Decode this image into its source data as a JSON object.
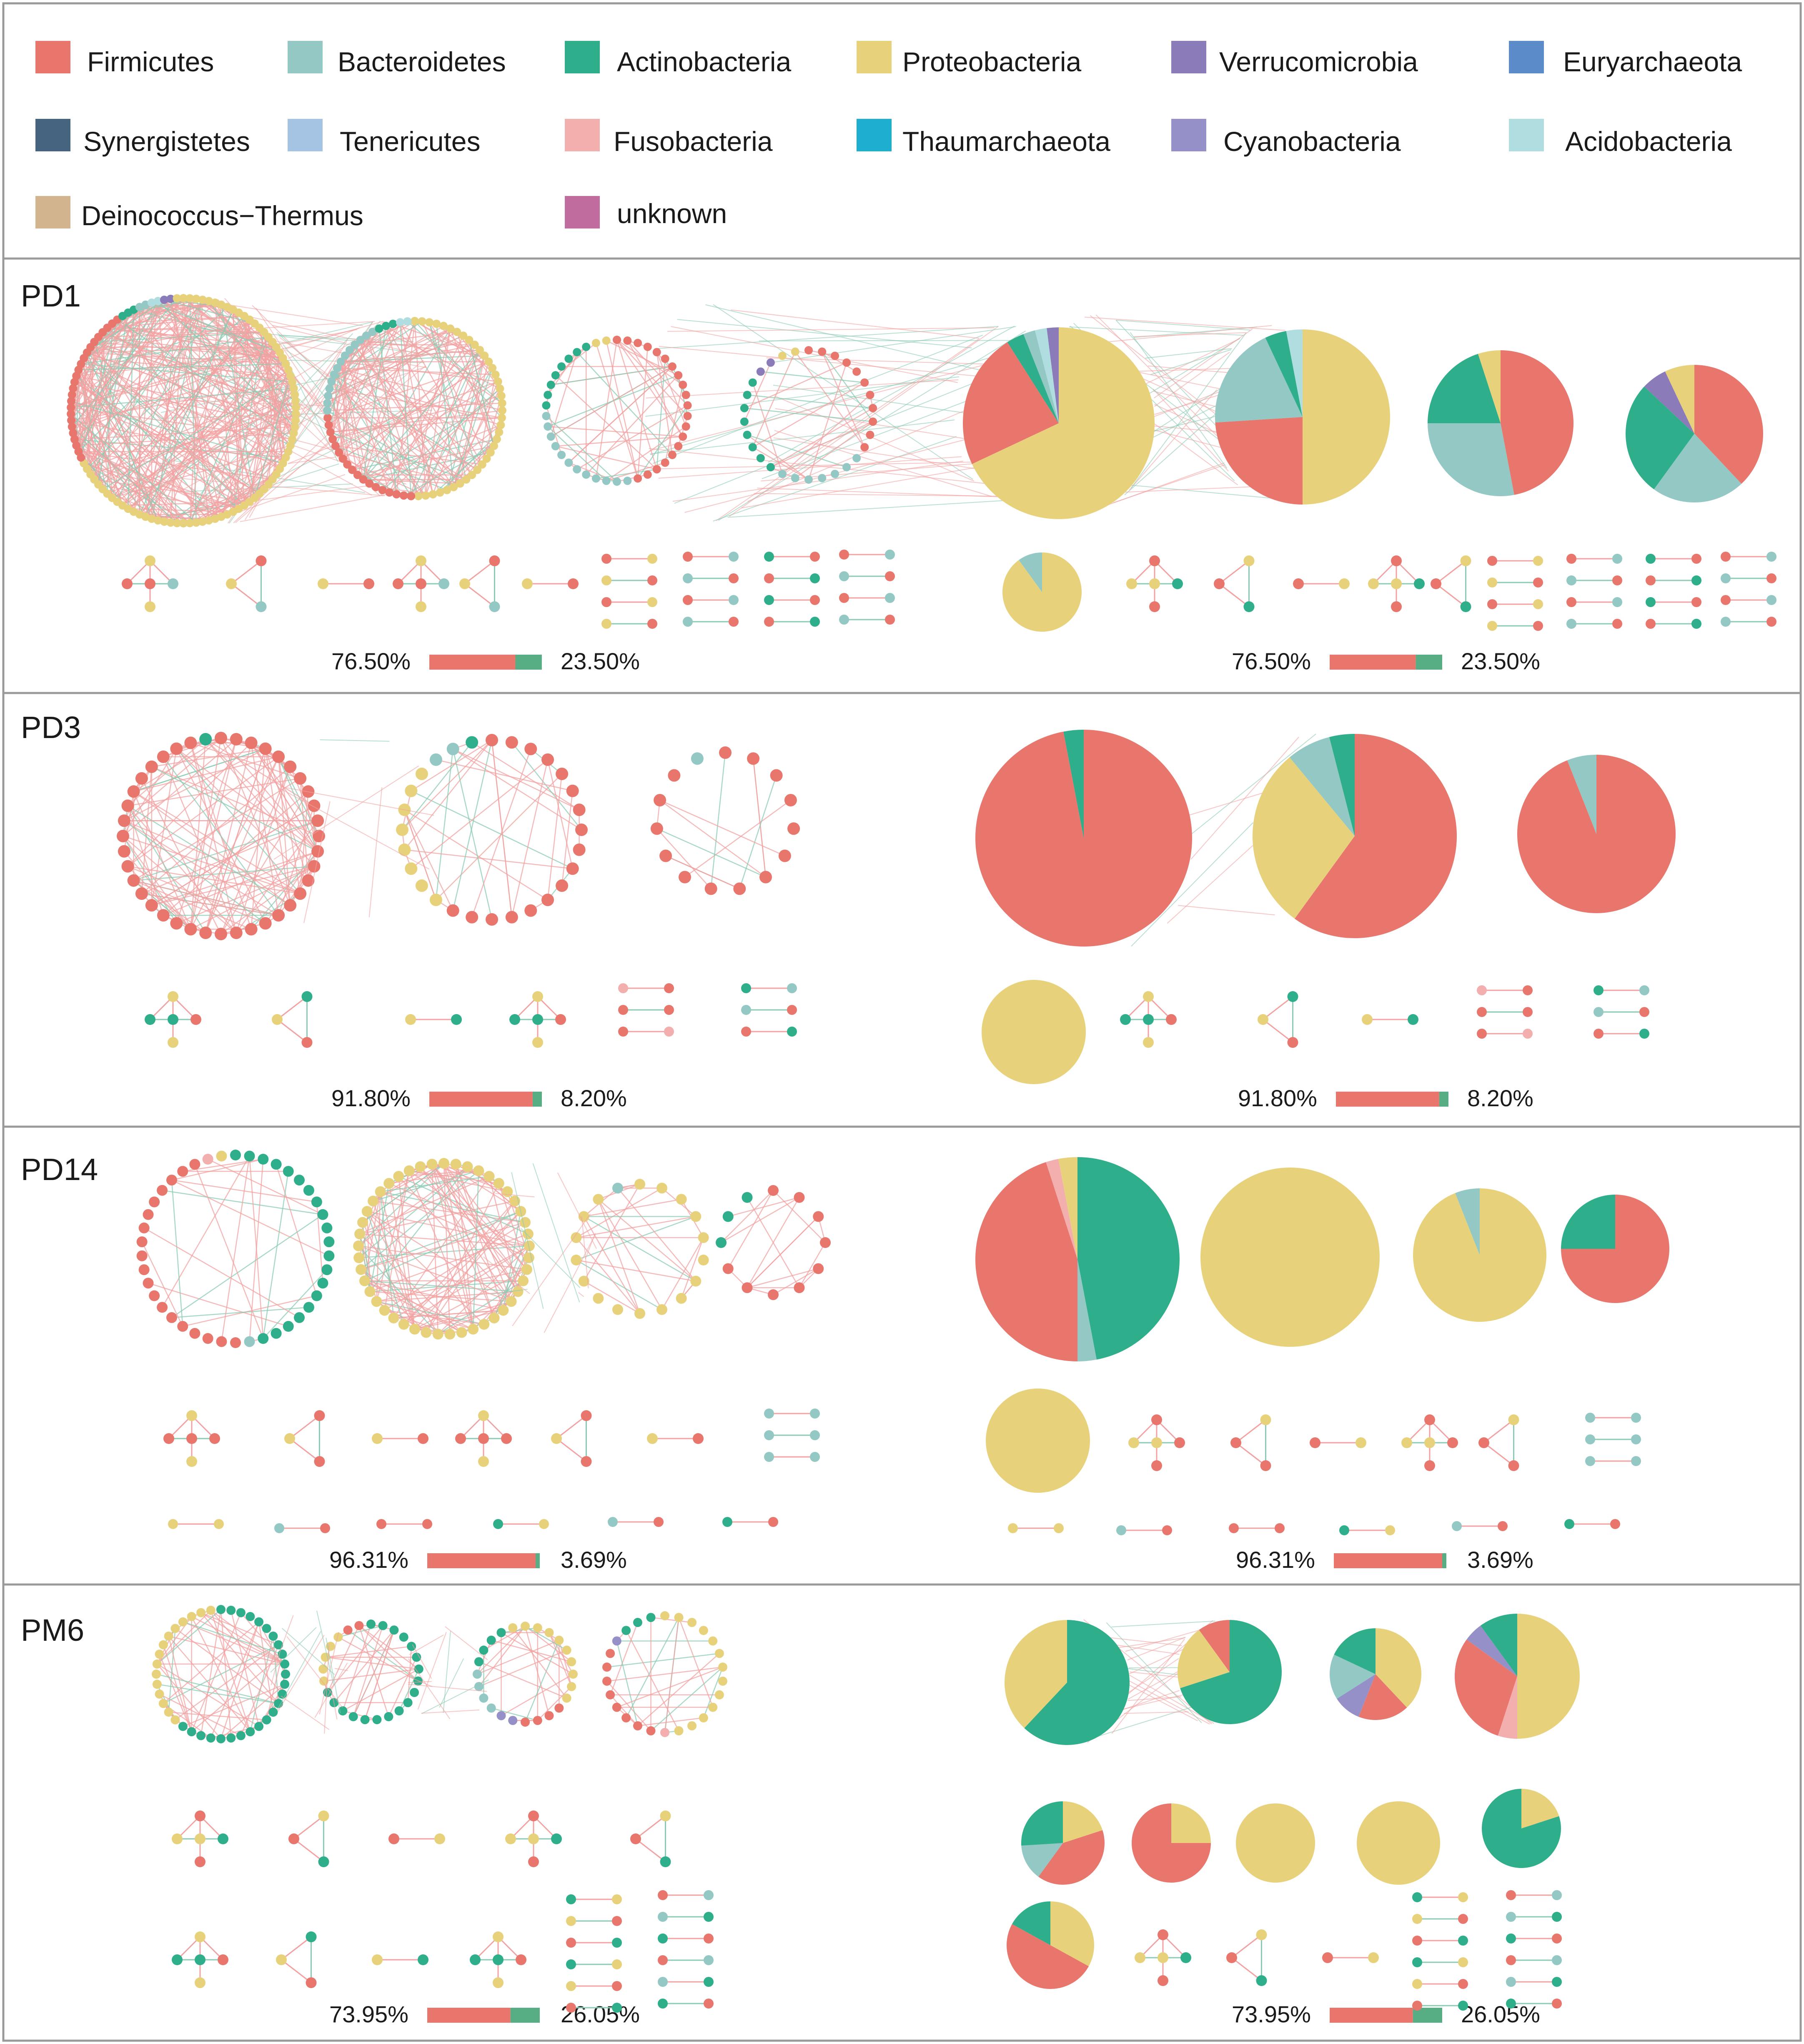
{
  "legend": [
    {
      "name": "Firmicutes",
      "color": "#E8766D"
    },
    {
      "name": "Bacteroidetes",
      "color": "#93C8C4"
    },
    {
      "name": "Actinobacteria",
      "color": "#2EAE8A"
    },
    {
      "name": "Proteobacteria",
      "color": "#E7D27B"
    },
    {
      "name": "Verrucomicrobia",
      "color": "#8B7BB8"
    },
    {
      "name": "Euryarchaeota",
      "color": "#5B8BC8"
    },
    {
      "name": "Synergistetes",
      "color": "#46637F"
    },
    {
      "name": "Tenericutes",
      "color": "#A5C3E2"
    },
    {
      "name": "Fusobacteria",
      "color": "#F3AEAE"
    },
    {
      "name": "Thaumarchaeota",
      "color": "#1EAECF"
    },
    {
      "name": "Cyanobacteria",
      "color": "#9590C7"
    },
    {
      "name": "Acidobacteria",
      "color": "#B0DDE0"
    },
    {
      "name": "Deinococcus−Thermus",
      "color": "#D2B48E"
    },
    {
      "name": "unknown",
      "color": "#C06C9E"
    }
  ],
  "edge_colors": {
    "positive": "#F2A2A2",
    "negative": "#8CCBB3"
  },
  "bar_colors": {
    "positive": "#E8766D",
    "negative": "#57AE85"
  },
  "panels": [
    {
      "id": "PD1",
      "title": "PD1",
      "positive_pct": 76.5,
      "positive_label": "76.50%",
      "negative_label": "23.50%",
      "modules": [
        {
          "n": 110,
          "mix": [
            [
              "Proteobacteria",
              0.68
            ],
            [
              "Firmicutes",
              0.23
            ],
            [
              "Actinobacteria",
              0.03
            ],
            [
              "Bacteroidetes",
              0.02
            ],
            [
              "Acidobacteria",
              0.02
            ],
            [
              "Verrucomicrobia",
              0.02
            ]
          ],
          "edges": 0.9
        },
        {
          "n": 75,
          "mix": [
            [
              "Proteobacteria",
              0.5
            ],
            [
              "Firmicutes",
              0.24
            ],
            [
              "Bacteroidetes",
              0.19
            ],
            [
              "Actinobacteria",
              0.04
            ],
            [
              "Acidobacteria",
              0.03
            ]
          ],
          "edges": 0.6
        },
        {
          "n": 42,
          "mix": [
            [
              "Firmicutes",
              0.47
            ],
            [
              "Bacteroidetes",
              0.28
            ],
            [
              "Actinobacteria",
              0.2
            ],
            [
              "Proteobacteria",
              0.05
            ]
          ],
          "edges": 0.3
        },
        {
          "n": 30,
          "mix": [
            [
              "Firmicutes",
              0.38
            ],
            [
              "Bacteroidetes",
              0.22
            ],
            [
              "Actinobacteria",
              0.27
            ],
            [
              "Verrucomicrobia",
              0.06
            ],
            [
              "Proteobacteria",
              0.07
            ]
          ],
          "edges": 0.15
        },
        {
          "n": 8,
          "mix": [
            [
              "Proteobacteria",
              0.9
            ],
            [
              "Bacteroidetes",
              0.1
            ]
          ],
          "edges": 0.5
        }
      ]
    },
    {
      "id": "PD3",
      "title": "PD3",
      "positive_pct": 91.8,
      "positive_label": "91.80%",
      "negative_label": "8.20%",
      "modules": [
        {
          "n": 40,
          "mix": [
            [
              "Firmicutes",
              0.97
            ],
            [
              "Actinobacteria",
              0.03
            ]
          ],
          "edges": 0.9
        },
        {
          "n": 28,
          "mix": [
            [
              "Firmicutes",
              0.6
            ],
            [
              "Proteobacteria",
              0.29
            ],
            [
              "Bacteroidetes",
              0.07
            ],
            [
              "Actinobacteria",
              0.04
            ]
          ],
          "edges": 0.3
        },
        {
          "n": 15,
          "mix": [
            [
              "Firmicutes",
              0.94
            ],
            [
              "Bacteroidetes",
              0.06
            ]
          ],
          "edges": 0.15
        },
        {
          "n": 6,
          "mix": [
            [
              "Proteobacteria",
              1.0
            ]
          ],
          "edges": 0.6
        }
      ]
    },
    {
      "id": "PD14",
      "title": "PD14",
      "positive_pct": 96.31,
      "positive_label": "96.31%",
      "negative_label": "3.69%",
      "modules": [
        {
          "n": 42,
          "mix": [
            [
              "Actinobacteria",
              0.47
            ],
            [
              "Bacteroidetes",
              0.03
            ],
            [
              "Firmicutes",
              0.45
            ],
            [
              "Fusobacteria",
              0.02
            ],
            [
              "Proteobacteria",
              0.03
            ]
          ],
          "edges": 0.12
        },
        {
          "n": 45,
          "mix": [
            [
              "Proteobacteria",
              1.0
            ]
          ],
          "edges": 0.8
        },
        {
          "n": 18,
          "mix": [
            [
              "Proteobacteria",
              0.94
            ],
            [
              "Bacteroidetes",
              0.06
            ]
          ],
          "edges": 0.35
        },
        {
          "n": 12,
          "mix": [
            [
              "Firmicutes",
              0.75
            ],
            [
              "Actinobacteria",
              0.25
            ]
          ],
          "edges": 0.25
        },
        {
          "n": 7,
          "mix": [
            [
              "Proteobacteria",
              1.0
            ]
          ],
          "edges": 0.5
        }
      ]
    },
    {
      "id": "PM6",
      "title": "PM6",
      "positive_pct": 73.95,
      "positive_label": "73.95%",
      "negative_label": "26.05%",
      "modules": [
        {
          "n": 40,
          "mix": [
            [
              "Actinobacteria",
              0.62
            ],
            [
              "Proteobacteria",
              0.38
            ]
          ],
          "edges": 0.4
        },
        {
          "n": 25,
          "mix": [
            [
              "Actinobacteria",
              0.7
            ],
            [
              "Proteobacteria",
              0.2
            ],
            [
              "Firmicutes",
              0.1
            ]
          ],
          "edges": 0.3
        },
        {
          "n": 24,
          "mix": [
            [
              "Proteobacteria",
              0.38
            ],
            [
              "Firmicutes",
              0.18
            ],
            [
              "Cyanobacteria",
              0.1
            ],
            [
              "Bacteroidetes",
              0.16
            ],
            [
              "Actinobacteria",
              0.18
            ]
          ],
          "edges": 0.25
        },
        {
          "n": 26,
          "mix": [
            [
              "Proteobacteria",
              0.5
            ],
            [
              "Fusobacteria",
              0.05
            ],
            [
              "Firmicutes",
              0.3
            ],
            [
              "Cyanobacteria",
              0.05
            ],
            [
              "Actinobacteria",
              0.1
            ]
          ],
          "edges": 0.2
        },
        {
          "n": 9,
          "mix": [
            [
              "Proteobacteria",
              0.2
            ],
            [
              "Firmicutes",
              0.4
            ],
            [
              "Bacteroidetes",
              0.14
            ],
            [
              "Actinobacteria",
              0.26
            ]
          ],
          "edges": 0.4
        },
        {
          "n": 7,
          "mix": [
            [
              "Proteobacteria",
              0.25
            ],
            [
              "Firmicutes",
              0.75
            ]
          ],
          "edges": 0.4
        },
        {
          "n": 7,
          "mix": [
            [
              "Proteobacteria",
              1.0
            ]
          ],
          "edges": 0.4
        },
        {
          "n": 7,
          "mix": [
            [
              "Proteobacteria",
              1.0
            ]
          ],
          "edges": 0.4
        },
        {
          "n": 6,
          "mix": [
            [
              "Proteobacteria",
              0.2
            ],
            [
              "Actinobacteria",
              0.8
            ]
          ],
          "edges": 0.4
        },
        {
          "n": 7,
          "mix": [
            [
              "Proteobacteria",
              0.33
            ],
            [
              "Firmicutes",
              0.5
            ],
            [
              "Actinobacteria",
              0.17
            ]
          ],
          "edges": 0.4
        }
      ]
    }
  ]
}
